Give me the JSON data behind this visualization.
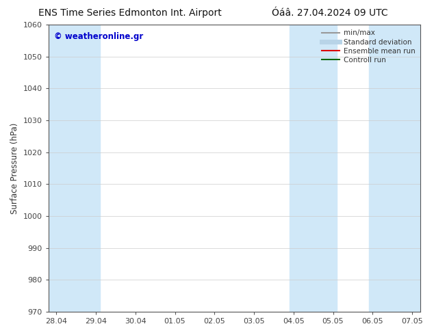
{
  "title_left": "ENS Time Series Edmonton Int. Airport",
  "title_right": "Óáâ. 27.04.2024 09 UTC",
  "ylabel": "Surface Pressure (hPa)",
  "ylim": [
    970,
    1060
  ],
  "yticks": [
    970,
    980,
    990,
    1000,
    1010,
    1020,
    1030,
    1040,
    1050,
    1060
  ],
  "xtick_labels": [
    "28.04",
    "29.04",
    "30.04",
    "01.05",
    "02.05",
    "03.05",
    "04.05",
    "05.05",
    "06.05",
    "07.05"
  ],
  "watermark": "© weatheronline.gr",
  "watermark_color": "#0000cc",
  "shaded_bands": [
    {
      "xmin": 27.8,
      "xmax": 29.1,
      "color": "#d0e8f8"
    },
    {
      "xmin": 33.9,
      "xmax": 35.1,
      "color": "#d0e8f8"
    },
    {
      "xmin": 35.9,
      "xmax": 37.2,
      "color": "#d0e8f8"
    }
  ],
  "legend_entries": [
    {
      "label": "min/max",
      "color": "#999999",
      "lw": 1.5
    },
    {
      "label": "Standard deviation",
      "color": "#b8d4e8",
      "lw": 5
    },
    {
      "label": "Ensemble mean run",
      "color": "#dd0000",
      "lw": 1.5
    },
    {
      "label": "Controll run",
      "color": "#006600",
      "lw": 1.5
    }
  ],
  "bg_color": "#ffffff",
  "plot_bg_color": "#ffffff",
  "grid_color": "#cccccc",
  "tick_color": "#444444",
  "label_color": "#333333",
  "spine_color": "#555555",
  "title_fontsize": 10,
  "label_fontsize": 8.5,
  "tick_fontsize": 8,
  "legend_fontsize": 7.5,
  "x_start": 27.8,
  "x_end": 37.2,
  "xtick_positions": [
    28,
    29,
    30,
    31,
    32,
    33,
    34,
    35,
    36,
    37
  ]
}
